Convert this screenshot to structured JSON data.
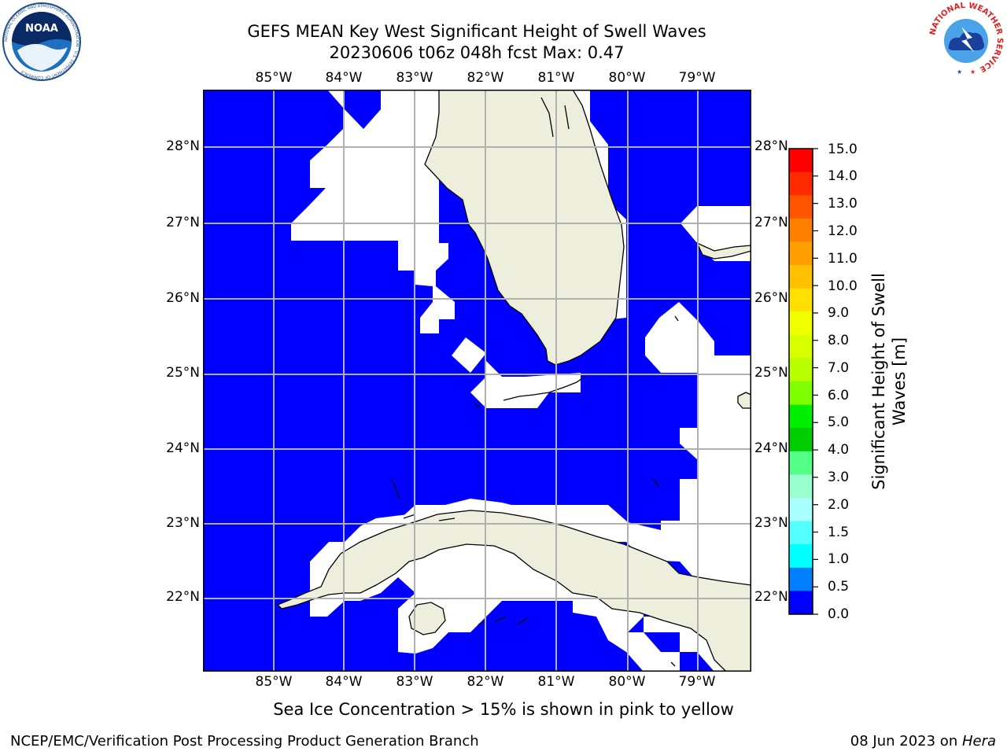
{
  "header": {
    "title_line1": "GEFS MEAN Key West Significant Height of Swell Waves",
    "title_line2": "20230606 t06z 048h fcst   Max: 0.47"
  },
  "logos": {
    "noaa_text": "NOAA",
    "noaa_ring_text": "NATIONAL OCEANIC AND ATMOSPHERIC ADMINISTRATION · U.S. DEPARTMENT OF COMMERCE",
    "nws_ring_text": "NATIONAL WEATHER SERVICE"
  },
  "map": {
    "lon_labels": [
      "85°W",
      "84°W",
      "83°W",
      "82°W",
      "81°W",
      "80°W",
      "79°W"
    ],
    "lat_labels": [
      "28°N",
      "27°N",
      "26°N",
      "25°N",
      "24°N",
      "23°N",
      "22°N"
    ],
    "ocean_color": "#0000ff",
    "land_color": "#eeeedd",
    "nodata_color": "#ffffff",
    "grid_color": "#b0b0b0"
  },
  "colorbar": {
    "label": "Significant Height of Swell Waves [m]",
    "ticks": [
      "15.0",
      "14.0",
      "13.0",
      "12.0",
      "11.0",
      "10.0",
      "9.0",
      "8.0",
      "7.0",
      "6.0",
      "5.0",
      "4.0",
      "3.0",
      "2.0",
      "1.5",
      "1.0",
      "0.5",
      "0.0"
    ],
    "bands_top_to_bottom": [
      "#ff0000",
      "#ff2a00",
      "#ff5500",
      "#ff7f00",
      "#ffa000",
      "#ffc000",
      "#ffe000",
      "#f0ff00",
      "#d8ff00",
      "#b8ff00",
      "#7fff00",
      "#00ee00",
      "#00cc00",
      "#55ff88",
      "#99ffcc",
      "#aaffff",
      "#55ffff",
      "#00ffff",
      "#0080ff",
      "#0000ff"
    ]
  },
  "notes": {
    "sea_ice": "Sea Ice Concentration > 15% is shown in pink to yellow"
  },
  "footer": {
    "left": "NCEP/EMC/Verification Post Processing Product Generation Branch",
    "date": "08 Jun 2023 on ",
    "machine": "Hera"
  }
}
